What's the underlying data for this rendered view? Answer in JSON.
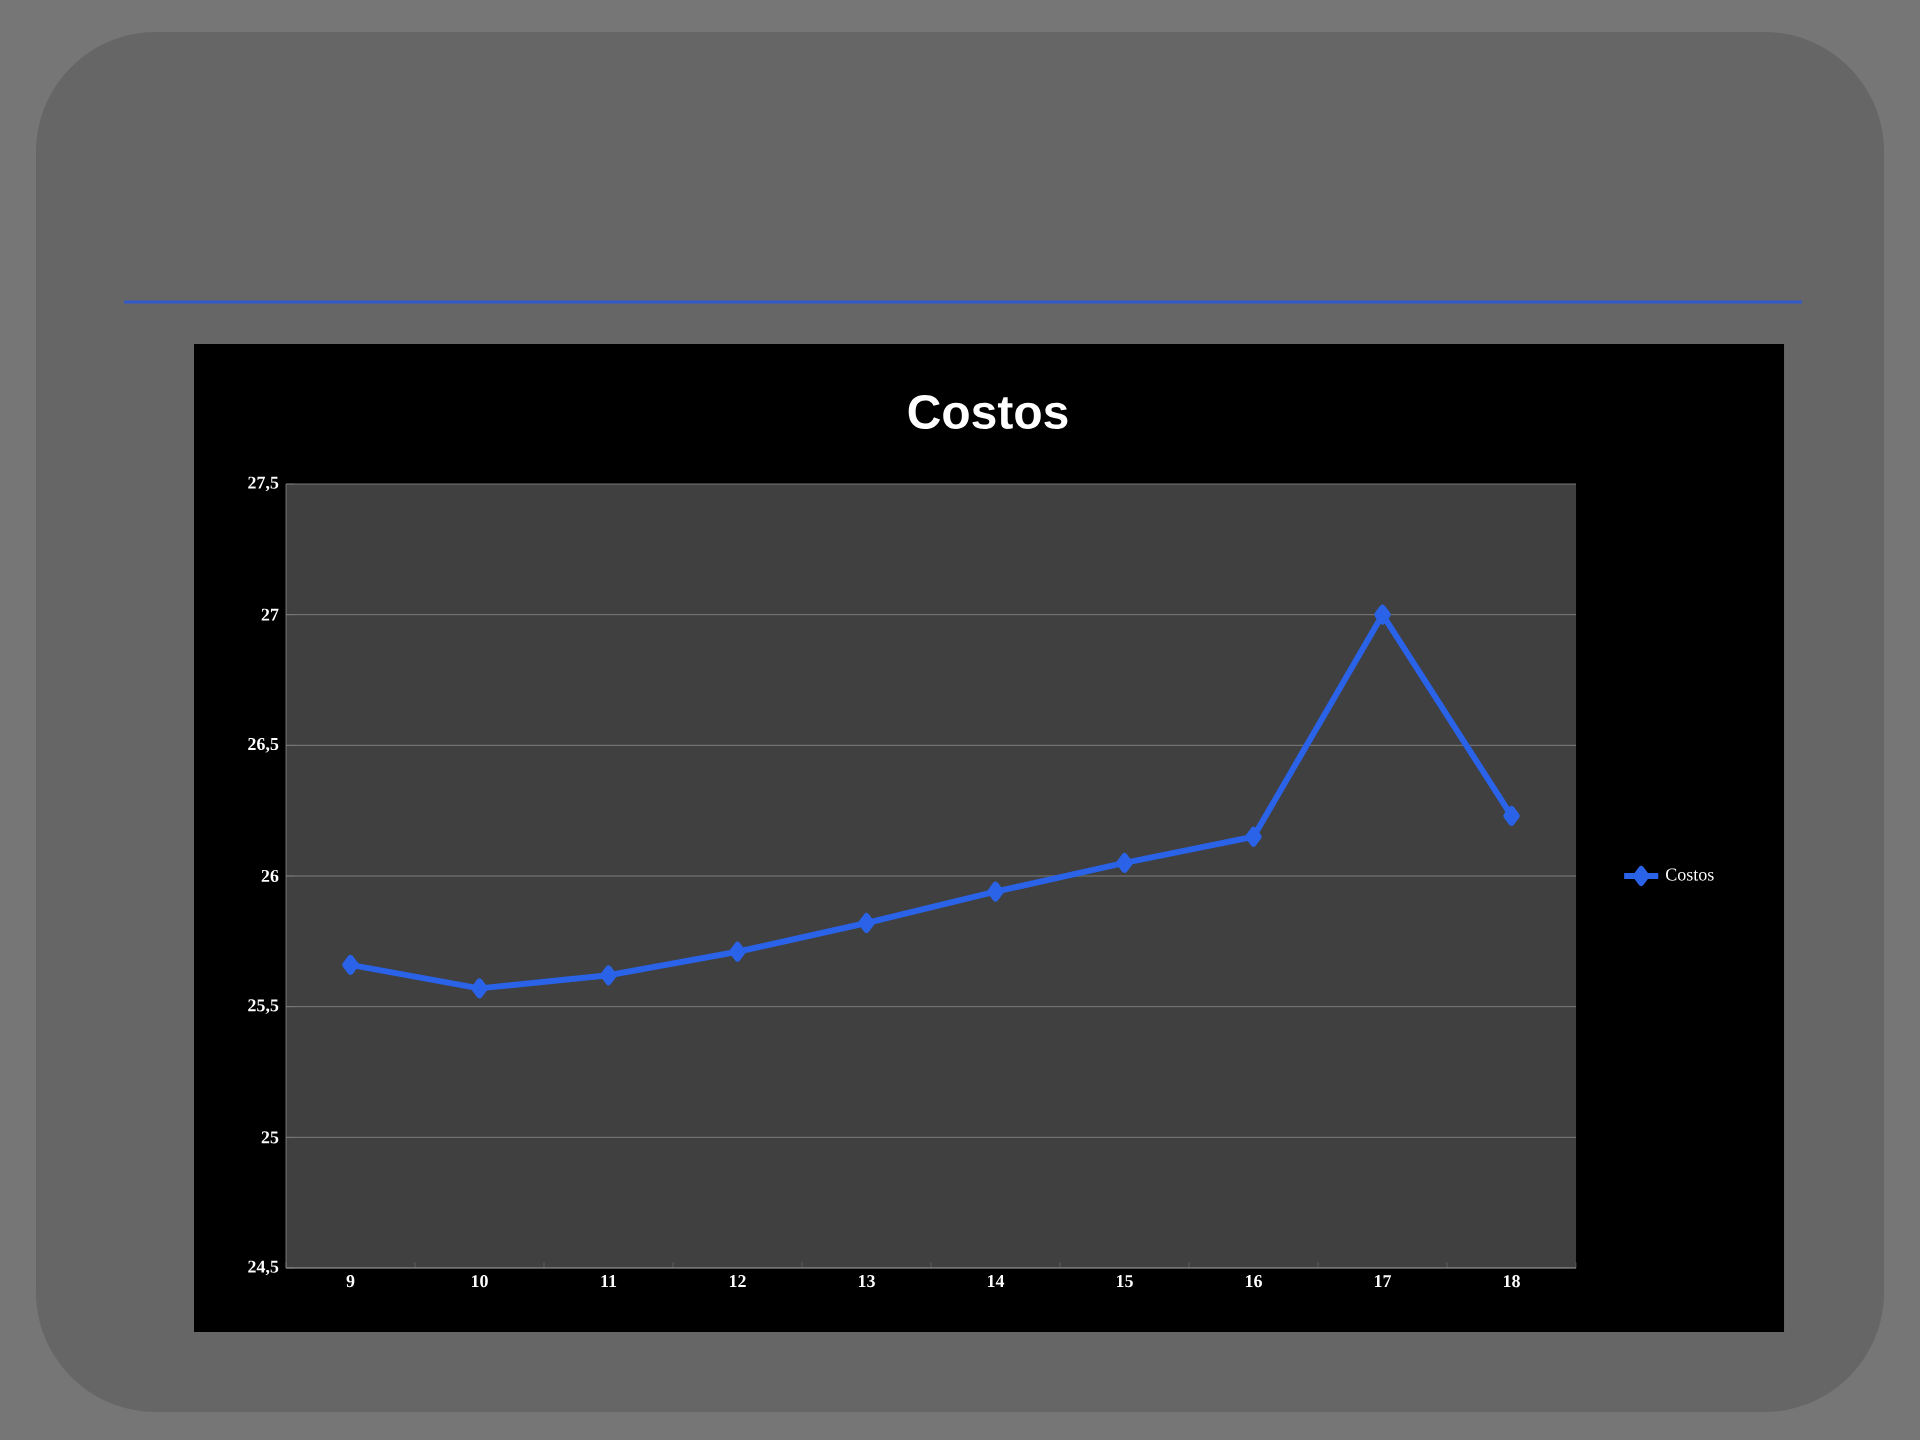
{
  "chart_data": {
    "type": "line",
    "title": "Costos",
    "categories": [
      "9",
      "10",
      "11",
      "12",
      "13",
      "14",
      "15",
      "16",
      "17",
      "18"
    ],
    "series": [
      {
        "name": "Costos",
        "color": "#2a62e8",
        "values": [
          25.66,
          25.57,
          25.62,
          25.71,
          25.82,
          25.94,
          26.05,
          26.15,
          27.0,
          26.23
        ]
      }
    ],
    "ylim": [
      24.5,
      27.5
    ],
    "yticks": [
      {
        "value": 24.5,
        "label": "24,5"
      },
      {
        "value": 25,
        "label": "25"
      },
      {
        "value": 25.5,
        "label": "25,5"
      },
      {
        "value": 26,
        "label": "26"
      },
      {
        "value": 26.5,
        "label": "26,5"
      },
      {
        "value": 27,
        "label": "27"
      },
      {
        "value": 27.5,
        "label": "27,5"
      }
    ],
    "grid": "y",
    "legend": "right",
    "marker": "diamond",
    "line_style": "solid"
  }
}
